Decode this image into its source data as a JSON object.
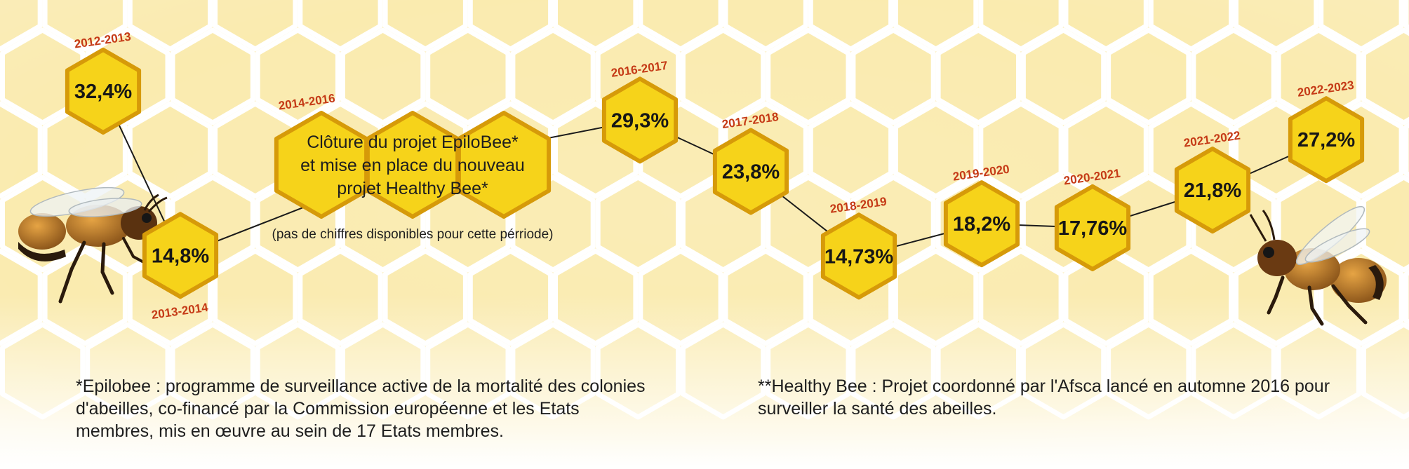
{
  "chart_data": {
    "type": "line",
    "title": "",
    "xlabel": "",
    "ylabel": "",
    "x": [
      "2012-2013",
      "2013-2014",
      "2014-2016",
      "2016-2017",
      "2017-2018",
      "2018-2019",
      "2019-2020",
      "2020-2021",
      "2021-2022",
      "2022-2023"
    ],
    "labels": [
      "32,4%",
      "14,8%",
      "",
      "29,3%",
      "23,8%",
      "14,73%",
      "18,2%",
      "17,76%",
      "21,8%",
      "27,2%"
    ],
    "series": [
      {
        "values": [
          32.4,
          14.8,
          null,
          29.3,
          23.8,
          14.73,
          18.2,
          17.76,
          21.8,
          27.2
        ]
      }
    ],
    "gap_period": {
      "label": "2014-2016",
      "text_lines": [
        "Clôture du projet EpiloBee*",
        "et mise en place du nouveau",
        "projet Healthy Bee*"
      ],
      "note": "(pas de chiffres disponibles pour cette pérriode)"
    },
    "grid": false,
    "legend": "none",
    "colors": {
      "hex_fill": "#f6d31a",
      "hex_stroke": "#d69a09",
      "year_label": "#c53a16",
      "connector": "#1a1a1a",
      "honeycomb_bg": "#f9ebb1"
    }
  },
  "footnotes": {
    "epilobee": "*Epilobee : programme de surveillance active de la mortalité des colonies d'abeilles, co-financé par la Commission européenne et les Etats membres, mis en œuvre au sein de 17 Etats membres.",
    "healthy_bee": "**Healthy Bee : Projet coordonné par l'Afsca lancé en automne 2016 pour surveiller la santé des abeilles."
  },
  "decorations": [
    "bee-left-image",
    "bee-right-image"
  ]
}
